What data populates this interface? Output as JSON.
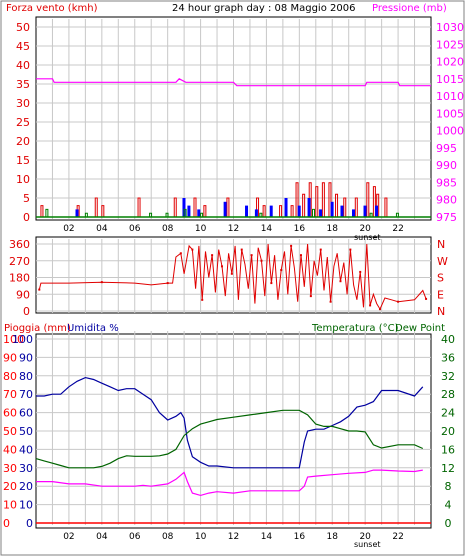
{
  "charts": {
    "title": "24 hour graph day : 08 Maggio 2006",
    "wind_label": "Forza vento (kmh)",
    "pressure_label": "Pressione (mb)",
    "rain_label": "Pioggia (mm)",
    "humidity_label": "Umidita %",
    "temperature_label": "Temperatura (°C)",
    "dewpoint_label": "Dew Point",
    "sunset_label": "sunset"
  },
  "colors": {
    "wind": "#e00000",
    "gust": "#0000ff",
    "green": "#008000",
    "pressure": "#ff00ff",
    "humidity": "#0000a0",
    "temperature": "#006400",
    "dewpoint": "#ff00ff",
    "rain": "#ff0000",
    "direction": "#e00000"
  },
  "x_ticks": [
    "02",
    "04",
    "06",
    "08",
    "10",
    "12",
    "14",
    "16",
    "18",
    "20",
    "22"
  ],
  "chart_data": [
    {
      "type": "bar",
      "name": "wind-pressure",
      "x_range": [
        0,
        24
      ],
      "left_axis": {
        "label": "Forza vento (kmh)",
        "ylim": [
          0,
          50
        ],
        "ticks": [
          0,
          5,
          10,
          15,
          20,
          25,
          30,
          35,
          40,
          45,
          50
        ]
      },
      "right_axis": {
        "label": "Pressione (mb)",
        "ylim": [
          975,
          1030
        ],
        "ticks": [
          975,
          980,
          985,
          990,
          995,
          1000,
          1005,
          1010,
          1015,
          1020,
          1025,
          1030
        ]
      },
      "series": [
        {
          "name": "Pressione (mb)",
          "axis": "right",
          "kind": "line",
          "x": [
            0,
            1,
            1.1,
            5,
            8.5,
            8.7,
            9.1,
            12,
            12.2,
            14,
            16,
            18,
            19.5,
            19.6,
            20,
            20.1,
            21.3,
            21.5,
            22,
            22.1,
            24
          ],
          "y": [
            1015,
            1015,
            1014,
            1014,
            1014,
            1015,
            1014,
            1014,
            1013,
            1013,
            1013,
            1013,
            1013,
            1013,
            1013,
            1014,
            1014,
            1014,
            1014,
            1013,
            1013
          ]
        },
        {
          "name": "wind",
          "axis": "left",
          "kind": "bars",
          "x": [
            0.3,
            2.5,
            3.6,
            4.0,
            6.2,
            8.4,
            9.6,
            10.2,
            11.6,
            13.4,
            13.8,
            14.8,
            15.5,
            15.8,
            16.2,
            16.6,
            17.0,
            17.4,
            17.8,
            18.2,
            18.7,
            19.4,
            20.1,
            20.5,
            20.7,
            21.2
          ],
          "y": [
            3,
            3,
            5,
            3,
            5,
            5,
            5,
            3,
            5,
            5,
            3,
            3,
            3,
            9,
            6,
            9,
            8,
            9,
            9,
            6,
            5,
            5,
            9,
            8,
            6,
            5
          ]
        },
        {
          "name": "gust",
          "axis": "left",
          "kind": "bars",
          "x": [
            2.4,
            8.9,
            9.2,
            9.8,
            11.4,
            12.7,
            13.3,
            14.2,
            15.1,
            15.9,
            16.5,
            17.2,
            17.9,
            18.5,
            19.2,
            19.9,
            20.6
          ],
          "y": [
            2,
            5,
            3,
            2,
            4,
            3,
            2,
            3,
            5,
            3,
            5,
            2,
            4,
            3,
            2,
            3,
            3
          ]
        },
        {
          "name": "calm",
          "axis": "left",
          "kind": "bars",
          "x": [
            0.6,
            3.0,
            6.9,
            7.9,
            9.0,
            10.0,
            13.6,
            16.8,
            20.3,
            21.9
          ],
          "y": [
            2,
            1,
            1,
            1,
            2,
            1,
            1,
            2,
            1,
            1
          ]
        }
      ]
    },
    {
      "type": "line",
      "name": "wind-direction",
      "x_range": [
        0,
        24
      ],
      "left_axis": {
        "ylim": [
          0,
          360
        ],
        "ticks": [
          0,
          90,
          180,
          270,
          360
        ]
      },
      "right_axis": {
        "ticks": [
          "N",
          "E",
          "S",
          "W",
          "N"
        ]
      },
      "series": [
        {
          "name": "direction",
          "x": [
            0.2,
            0.3,
            2,
            4,
            6,
            7,
            8,
            8.3,
            8.5,
            8.8,
            9,
            9.3,
            9.5,
            9.7,
            9.9,
            10.1,
            10.3,
            10.5,
            10.7,
            10.9,
            11.1,
            11.3,
            11.5,
            11.7,
            11.9,
            12.1,
            12.3,
            12.5,
            12.7,
            12.9,
            13.1,
            13.3,
            13.5,
            13.7,
            13.9,
            14.1,
            14.3,
            14.5,
            14.7,
            14.9,
            15.1,
            15.3,
            15.5,
            15.7,
            15.9,
            16.1,
            16.3,
            16.5,
            16.7,
            16.9,
            17.1,
            17.3,
            17.5,
            17.7,
            17.9,
            18.1,
            18.3,
            18.5,
            18.7,
            18.9,
            19.1,
            19.3,
            19.5,
            19.7,
            19.9,
            20.1,
            20.3,
            20.5,
            20.7,
            20.9,
            21.2,
            21.6,
            22,
            23,
            23.5,
            23.7
          ],
          "y": [
            115,
            150,
            150,
            155,
            150,
            140,
            150,
            150,
            290,
            310,
            200,
            350,
            330,
            120,
            350,
            60,
            320,
            180,
            300,
            100,
            330,
            240,
            80,
            310,
            200,
            350,
            60,
            330,
            250,
            120,
            300,
            40,
            340,
            270,
            80,
            360,
            150,
            300,
            60,
            220,
            320,
            90,
            350,
            230,
            50,
            300,
            130,
            360,
            80,
            270,
            190,
            330,
            110,
            290,
            50,
            240,
            310,
            160,
            260,
            90,
            330,
            140,
            60,
            210,
            20,
            360,
            30,
            90,
            40,
            10,
            70,
            60,
            50,
            60,
            110,
            65
          ]
        }
      ]
    },
    {
      "type": "line",
      "name": "humidity-temperature",
      "x_range": [
        0,
        24
      ],
      "left_axis": {
        "label": "Pioggia (mm)",
        "ylim": [
          0,
          100
        ],
        "ticks": [
          0,
          10,
          20,
          30,
          40,
          50,
          60,
          70,
          80,
          90,
          100
        ]
      },
      "left_axis_2": {
        "label": "Umidita %",
        "ylim": [
          0,
          100
        ],
        "ticks": [
          0,
          10,
          20,
          30,
          40,
          50,
          60,
          70,
          80,
          90,
          100
        ]
      },
      "right_axis": {
        "label": "Temperatura (°C)",
        "ylim": [
          0,
          40
        ],
        "ticks": [
          0,
          4,
          8,
          12,
          16,
          20,
          24,
          28,
          32,
          36,
          40
        ]
      },
      "series": [
        {
          "name": "Umidita %",
          "axis": "left",
          "x": [
            0,
            0.5,
            1,
            1.5,
            2,
            2.5,
            3,
            3.5,
            4,
            4.5,
            5,
            5.5,
            6,
            6.5,
            7,
            7.5,
            8,
            8.5,
            8.8,
            9,
            9.2,
            9.5,
            10,
            10.5,
            11,
            12,
            13,
            14,
            15,
            16,
            16.3,
            16.5,
            17,
            17.5,
            18,
            18.5,
            19,
            19.5,
            20,
            20.5,
            21,
            22,
            23,
            23.5
          ],
          "y": [
            69,
            69,
            70,
            70,
            74,
            77,
            79,
            78,
            76,
            74,
            72,
            73,
            73,
            70,
            67,
            60,
            56,
            58,
            60,
            57,
            45,
            36,
            33,
            31,
            31,
            30,
            30,
            30,
            30,
            30,
            44,
            50,
            51,
            51,
            53,
            55,
            58,
            63,
            64,
            66,
            72,
            72,
            69,
            74
          ]
        },
        {
          "name": "Temperatura (°C)",
          "axis": "right",
          "x": [
            0,
            0.5,
            1,
            1.5,
            2,
            2.5,
            3,
            3.5,
            4,
            4.5,
            5,
            5.5,
            6,
            6.5,
            7,
            7.5,
            8,
            8.5,
            9,
            9.5,
            10,
            10.5,
            11,
            12,
            13,
            14,
            15,
            16,
            16.5,
            17,
            17.5,
            18,
            18.5,
            19,
            19.5,
            20,
            20.5,
            21,
            22,
            23,
            23.5
          ],
          "y": [
            14,
            13.5,
            13,
            12.5,
            12,
            12,
            12,
            12,
            12.3,
            13,
            14,
            14.6,
            14.5,
            14.5,
            14.5,
            14.6,
            15,
            16,
            19,
            20.5,
            21.5,
            22,
            22.5,
            23,
            23.5,
            24,
            24.5,
            24.5,
            23.5,
            21.5,
            21,
            21,
            20.5,
            20,
            20,
            19.8,
            17,
            16.3,
            17,
            17,
            16.2
          ]
        },
        {
          "name": "Dew Point",
          "axis": "right",
          "x": [
            0,
            1,
            2,
            3,
            4,
            5,
            6,
            6.5,
            7,
            8,
            8.5,
            9,
            9.2,
            9.5,
            10,
            10.5,
            11,
            12,
            13,
            14,
            15,
            16,
            16.3,
            16.5,
            17,
            18,
            19,
            20,
            20.5,
            21,
            22,
            23,
            23.5
          ],
          "y": [
            9,
            9,
            8.5,
            8.5,
            8,
            8,
            8,
            8.2,
            8,
            8.5,
            9.5,
            11,
            9,
            6.5,
            6,
            6.5,
            6.8,
            6.5,
            7,
            7,
            7,
            7,
            8,
            10,
            10.2,
            10.5,
            10.8,
            11,
            11.5,
            11.5,
            11.3,
            11.2,
            11.5
          ]
        },
        {
          "name": "Pioggia (mm)",
          "axis": "left",
          "x": [
            0,
            24
          ],
          "y": [
            0,
            0
          ]
        }
      ]
    }
  ]
}
